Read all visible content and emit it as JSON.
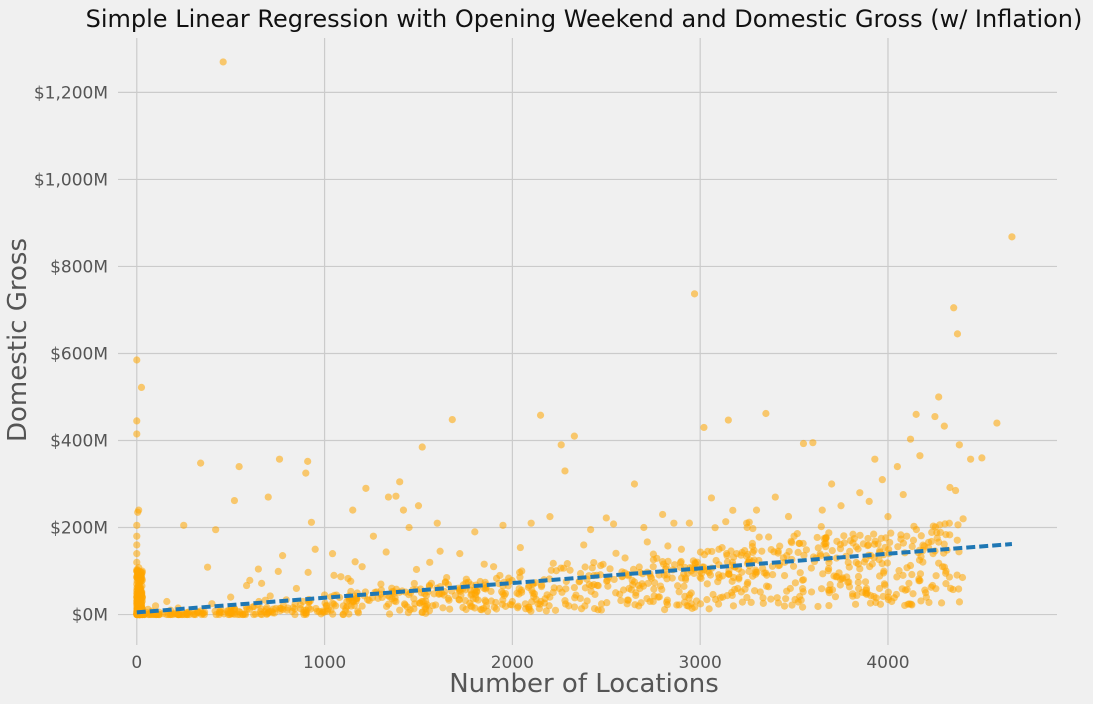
{
  "chart_data": {
    "type": "scatter",
    "title": "Simple Linear Regression with Opening Weekend and Domestic Gross (w/ Inflation)",
    "xlabel": "Number of Locations",
    "ylabel": "Domestic Gross",
    "xlim": [
      -100,
      4900
    ],
    "ylim": [
      -70,
      1325
    ],
    "x_ticks": [
      0,
      1000,
      2000,
      3000,
      4000
    ],
    "y_ticks": [
      0,
      200,
      400,
      600,
      800,
      1000,
      1200
    ],
    "y_tick_labels": [
      "$0M",
      "$200M",
      "$400M",
      "$600M",
      "$800M",
      "$1,000M",
      "$1,200M"
    ],
    "grid": true,
    "colors": {
      "points": "#ffa500",
      "regression": "#1f77b4",
      "background": "#f0f0f0",
      "grid": "#cbcbcb"
    },
    "series": [
      {
        "type": "scatter",
        "points": [
          [
            0,
            585
          ],
          [
            0,
            445
          ],
          [
            0,
            415
          ],
          [
            25,
            522
          ],
          [
            460,
            1270
          ],
          [
            4660,
            868
          ],
          [
            2970,
            737
          ],
          [
            4350,
            705
          ],
          [
            4370,
            645
          ],
          [
            10,
            240
          ],
          [
            5,
            235
          ],
          [
            0,
            205
          ],
          [
            0,
            180
          ],
          [
            0,
            160
          ],
          [
            0,
            140
          ],
          [
            0,
            120
          ],
          [
            0,
            100
          ],
          [
            0,
            85
          ],
          [
            0,
            70
          ],
          [
            0,
            55
          ],
          [
            0,
            40
          ],
          [
            0,
            25
          ],
          [
            0,
            15
          ],
          [
            0,
            8
          ],
          [
            0,
            3
          ],
          [
            5,
            2
          ],
          [
            10,
            1
          ],
          [
            15,
            4
          ],
          [
            20,
            10
          ],
          [
            30,
            6
          ],
          [
            40,
            2
          ],
          [
            50,
            5
          ],
          [
            60,
            12
          ],
          [
            70,
            3
          ],
          [
            80,
            8
          ],
          [
            90,
            1
          ],
          [
            100,
            20
          ],
          [
            120,
            5
          ],
          [
            140,
            2
          ],
          [
            160,
            30
          ],
          [
            180,
            10
          ],
          [
            200,
            3
          ],
          [
            220,
            15
          ],
          [
            250,
            205
          ],
          [
            300,
            8
          ],
          [
            340,
            348
          ],
          [
            400,
            25
          ],
          [
            420,
            195
          ],
          [
            450,
            5
          ],
          [
            500,
            40
          ],
          [
            520,
            262
          ],
          [
            545,
            340
          ],
          [
            600,
            12
          ],
          [
            650,
            30
          ],
          [
            700,
            270
          ],
          [
            760,
            357
          ],
          [
            800,
            10
          ],
          [
            850,
            60
          ],
          [
            900,
            325
          ],
          [
            910,
            352
          ],
          [
            930,
            212
          ],
          [
            950,
            150
          ],
          [
            1000,
            45
          ],
          [
            1050,
            90
          ],
          [
            1100,
            20
          ],
          [
            1150,
            240
          ],
          [
            1200,
            110
          ],
          [
            1220,
            290
          ],
          [
            1260,
            180
          ],
          [
            1300,
            70
          ],
          [
            1340,
            270
          ],
          [
            1380,
            272
          ],
          [
            1400,
            305
          ],
          [
            1420,
            240
          ],
          [
            1450,
            200
          ],
          [
            1500,
            250
          ],
          [
            1520,
            385
          ],
          [
            1560,
            120
          ],
          [
            1600,
            210
          ],
          [
            1650,
            85
          ],
          [
            1680,
            448
          ],
          [
            1720,
            140
          ],
          [
            1800,
            190
          ],
          [
            1850,
            60
          ],
          [
            1900,
            110
          ],
          [
            1950,
            205
          ],
          [
            2000,
            30
          ],
          [
            2050,
            100
          ],
          [
            2100,
            210
          ],
          [
            2150,
            458
          ],
          [
            2200,
            225
          ],
          [
            2260,
            390
          ],
          [
            2280,
            330
          ],
          [
            2330,
            410
          ],
          [
            2380,
            160
          ],
          [
            2450,
            90
          ],
          [
            2500,
            222
          ],
          [
            2550,
            50
          ],
          [
            2600,
            130
          ],
          [
            2650,
            300
          ],
          [
            2700,
            200
          ],
          [
            2750,
            110
          ],
          [
            2800,
            230
          ],
          [
            2860,
            210
          ],
          [
            2900,
            150
          ],
          [
            3000,
            100
          ],
          [
            3020,
            430
          ],
          [
            3060,
            268
          ],
          [
            3100,
            150
          ],
          [
            3150,
            447
          ],
          [
            3200,
            60
          ],
          [
            3250,
            200
          ],
          [
            3300,
            240
          ],
          [
            3350,
            462
          ],
          [
            3400,
            270
          ],
          [
            3450,
            120
          ],
          [
            3500,
            180
          ],
          [
            3550,
            393
          ],
          [
            3600,
            395
          ],
          [
            3650,
            240
          ],
          [
            3700,
            300
          ],
          [
            3750,
            250
          ],
          [
            3800,
            170
          ],
          [
            3850,
            280
          ],
          [
            3900,
            260
          ],
          [
            3930,
            357
          ],
          [
            3970,
            310
          ],
          [
            4000,
            225
          ],
          [
            4020,
            30
          ],
          [
            4050,
            340
          ],
          [
            4080,
            90
          ],
          [
            4100,
            180
          ],
          [
            4120,
            403
          ],
          [
            4150,
            460
          ],
          [
            4170,
            365
          ],
          [
            4250,
            455
          ],
          [
            4270,
            500
          ],
          [
            4300,
            433
          ],
          [
            4330,
            292
          ],
          [
            4360,
            285
          ],
          [
            4380,
            390
          ],
          [
            4400,
            220
          ],
          [
            4440,
            357
          ],
          [
            4500,
            360
          ],
          [
            4580,
            440
          ],
          [
            4270,
            118
          ],
          [
            4240,
            140
          ],
          [
            3480,
            60
          ],
          [
            3550,
            80
          ],
          [
            3120,
            40
          ],
          [
            2750,
            30
          ],
          [
            2300,
            20
          ],
          [
            1800,
            15
          ],
          [
            1400,
            10
          ],
          [
            1000,
            6
          ],
          [
            700,
            4
          ],
          [
            350,
            2
          ],
          [
            2650,
            75
          ],
          [
            3850,
            105
          ]
        ]
      },
      {
        "type": "line",
        "name": "regression",
        "points": [
          [
            0,
            5
          ],
          [
            4660,
            162
          ]
        ]
      }
    ]
  }
}
